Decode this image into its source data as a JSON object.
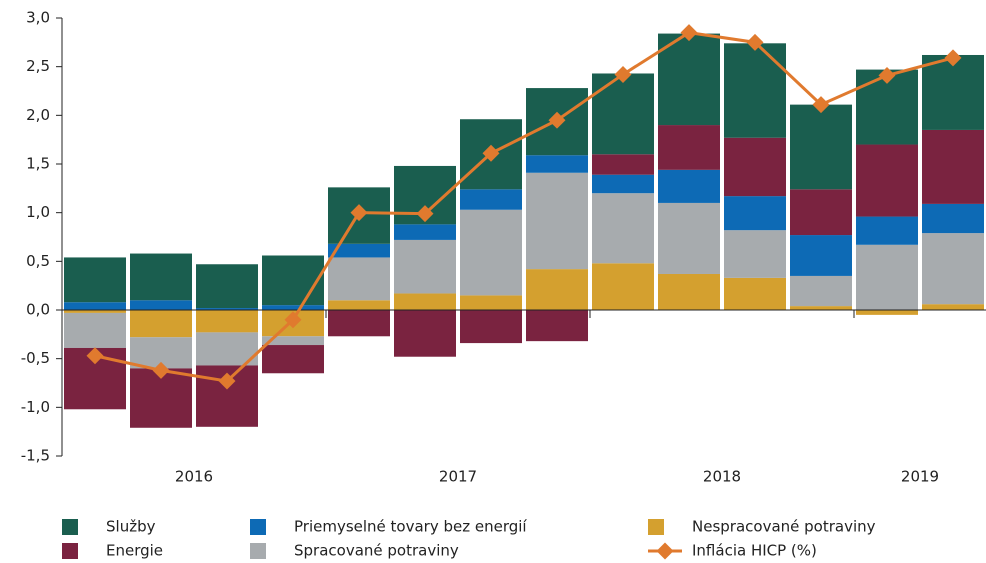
{
  "chart_data": {
    "type": "bar",
    "categories": [
      null,
      null,
      null,
      null,
      null,
      null,
      null,
      null,
      null,
      null,
      null,
      null,
      null,
      null
    ],
    "groups": [
      "2016",
      "2017",
      "2018",
      "2019"
    ],
    "series": [
      {
        "name": "Služby",
        "color": "#1a5e4f",
        "values": [
          0.46,
          0.48,
          0.45,
          0.51,
          0.58,
          0.6,
          0.72,
          0.69,
          0.83,
          0.94,
          0.97,
          0.87,
          0.77,
          0.77
        ]
      },
      {
        "name": "Energie",
        "color": "#7a2340",
        "values": [
          -0.63,
          -0.61,
          -0.63,
          -0.29,
          -0.27,
          -0.48,
          -0.34,
          -0.32,
          0.21,
          0.46,
          0.6,
          0.47,
          0.74,
          0.76
        ]
      },
      {
        "name": "Priemyselné tovary bez energií",
        "color": "#0d6ab5",
        "values": [
          0.08,
          0.1,
          0.02,
          0.05,
          0.14,
          0.16,
          0.21,
          0.18,
          0.19,
          0.34,
          0.35,
          0.42,
          0.29,
          0.3
        ]
      },
      {
        "name": "Spracované potraviny",
        "color": "#a7abae",
        "values": [
          -0.36,
          -0.32,
          -0.34,
          -0.09,
          0.44,
          0.55,
          0.88,
          0.99,
          0.72,
          0.73,
          0.49,
          0.31,
          0.67,
          0.73
        ]
      },
      {
        "name": "Nespracované potraviny",
        "color": "#d4a02f",
        "values": [
          -0.03,
          -0.28,
          -0.23,
          -0.27,
          0.1,
          0.17,
          0.15,
          0.42,
          0.48,
          0.37,
          0.33,
          0.04,
          -0.05,
          0.06
        ]
      },
      {
        "name": "Inflácia HICP (%)",
        "type": "line",
        "color": "#e07a2e",
        "values": [
          -0.47,
          -0.62,
          -0.73,
          -0.1,
          1.0,
          0.99,
          1.61,
          1.95,
          2.42,
          2.85,
          2.75,
          2.11,
          2.41,
          2.59
        ]
      }
    ],
    "ylim": [
      -1.5,
      3.0
    ],
    "yticks": [
      {
        "value": -1.5,
        "label": "-1,5"
      },
      {
        "value": -1.0,
        "label": "-1,0"
      },
      {
        "value": -0.5,
        "label": "-0,5"
      },
      {
        "value": 0,
        "label": "0,0"
      },
      {
        "value": 0.5,
        "label": "0,5"
      },
      {
        "value": 1.0,
        "label": "1,0"
      },
      {
        "value": 1.5,
        "label": "1,5"
      },
      {
        "value": 2.0,
        "label": "2,0"
      },
      {
        "value": 2.5,
        "label": "2,5"
      },
      {
        "value": 3.0,
        "label": "3,0"
      }
    ],
    "grid": false
  }
}
